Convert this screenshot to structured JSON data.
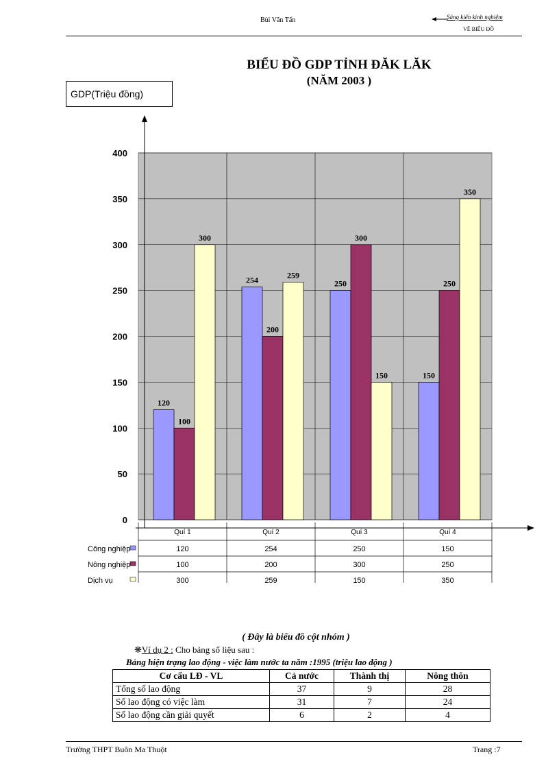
{
  "header": {
    "author": "Bùi Văn Tấn",
    "right_top": "Sáng  kiến kinh nghiệm",
    "right_bottom": "VẼ BIỂU ĐỒ"
  },
  "chart_data": {
    "type": "bar",
    "title": "BIỂU ĐỒ GDP TỈNH ĐĂK LĂK",
    "subtitle": "(NĂM 2003 )",
    "ylabel": "GDP(Triệu  đồng)",
    "xlabel": "",
    "ylim": [
      0,
      400
    ],
    "yticks": [
      0,
      50,
      100,
      150,
      200,
      250,
      300,
      350,
      400
    ],
    "categories": [
      "Quí 1",
      "Quí 2",
      "Quí 3",
      "Quí 4"
    ],
    "series": [
      {
        "name": "Công nghiệp",
        "values": [
          120,
          254,
          250,
          150
        ],
        "color": "#9999ff"
      },
      {
        "name": "Nông nghiệp",
        "values": [
          100,
          200,
          300,
          250
        ],
        "color": "#993366"
      },
      {
        "name": "Dịch vụ",
        "values": [
          300,
          259,
          150,
          350
        ],
        "color": "#ffffcc"
      }
    ],
    "plot_bg": "#c0c0c0",
    "grid": true
  },
  "caption": "( Đây là biểu đồ cột nhóm )",
  "example": {
    "bullet": "❋",
    "label": "Ví dụ 2 :",
    "text": " Cho bảng số liệu  sau :"
  },
  "labor_table": {
    "title": "Bảng hiện trạng lao động - việc làm nước ta năm :1995 (triệu lao động )",
    "headers": [
      "Cơ cấu LĐ - VL",
      "Cả nước",
      "Thành  thị",
      "Nông thôn"
    ],
    "rows": [
      [
        "Tổng  số lao động",
        "37",
        "9",
        "28"
      ],
      [
        "Số lao động có việc làm",
        "31",
        "7",
        "24"
      ],
      [
        "Số lao động cần giải  quyết",
        "6",
        "2",
        "4"
      ]
    ]
  },
  "footer": {
    "school": "Trường  THPT  Buôn Ma Thuột",
    "page": "Trang :7"
  }
}
